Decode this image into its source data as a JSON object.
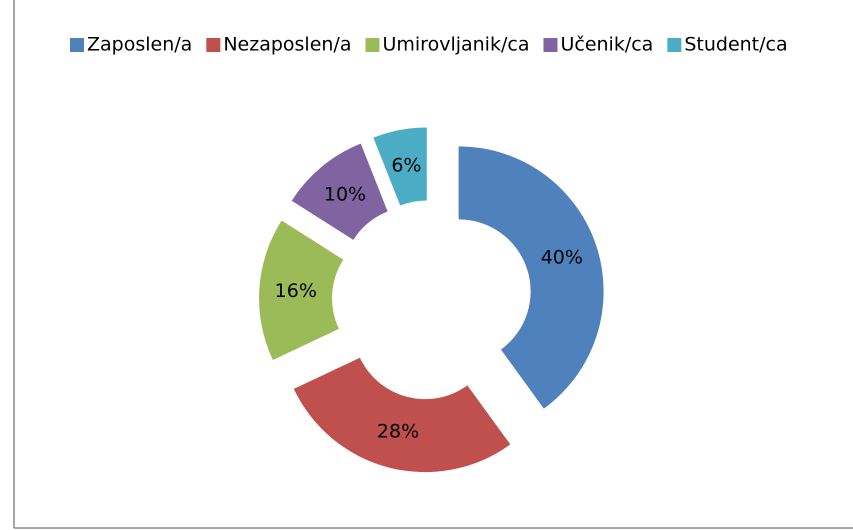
{
  "chart_data": {
    "type": "donut",
    "categories": [
      "Zaposlen/a",
      "Nezaposlen/a",
      "Umirovljanik/ca",
      "Učenik/ca",
      "Student/ca"
    ],
    "values": [
      40,
      28,
      16,
      10,
      6
    ],
    "value_labels": [
      "40%",
      "28%",
      "16%",
      "10%",
      "6%"
    ],
    "colors": [
      "#4f81bd",
      "#c0504d",
      "#9bbb59",
      "#8064a2",
      "#4bacc6"
    ],
    "legend": "top"
  }
}
